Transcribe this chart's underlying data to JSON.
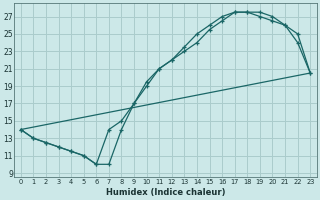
{
  "xlabel": "Humidex (Indice chaleur)",
  "bg_color": "#cce8e8",
  "grid_color": "#aacccc",
  "line_color": "#1a6666",
  "xlim": [
    -0.5,
    23.5
  ],
  "ylim": [
    8.5,
    28.5
  ],
  "xticks": [
    0,
    1,
    2,
    3,
    4,
    5,
    6,
    7,
    8,
    9,
    10,
    11,
    12,
    13,
    14,
    15,
    16,
    17,
    18,
    19,
    20,
    21,
    22,
    23
  ],
  "yticks": [
    9,
    11,
    13,
    15,
    17,
    19,
    21,
    23,
    25,
    27
  ],
  "line1_x": [
    0,
    1,
    2,
    3,
    4,
    5,
    6,
    7,
    8,
    9,
    10,
    11,
    12,
    13,
    14,
    15,
    16,
    17,
    18,
    19,
    20,
    21,
    22,
    23
  ],
  "line1_y": [
    14,
    13,
    12.5,
    12,
    11.5,
    11,
    10,
    14,
    15,
    17,
    19,
    21,
    22,
    23,
    24,
    25.5,
    26.5,
    27.5,
    27.5,
    27.5,
    27,
    26,
    24,
    20.5
  ],
  "line2_x": [
    0,
    1,
    2,
    3,
    4,
    5,
    6,
    7,
    8,
    9,
    10,
    11,
    12,
    13,
    14,
    15,
    16,
    17,
    18,
    19,
    20,
    21,
    22,
    23
  ],
  "line2_y": [
    14,
    13,
    12.5,
    12,
    11.5,
    11,
    10,
    10,
    14,
    17,
    19.5,
    21,
    22,
    23.5,
    25,
    26,
    27,
    27.5,
    27.5,
    27,
    26.5,
    26,
    25,
    20.5
  ],
  "line3_x": [
    0,
    23
  ],
  "line3_y": [
    14,
    20.5
  ]
}
